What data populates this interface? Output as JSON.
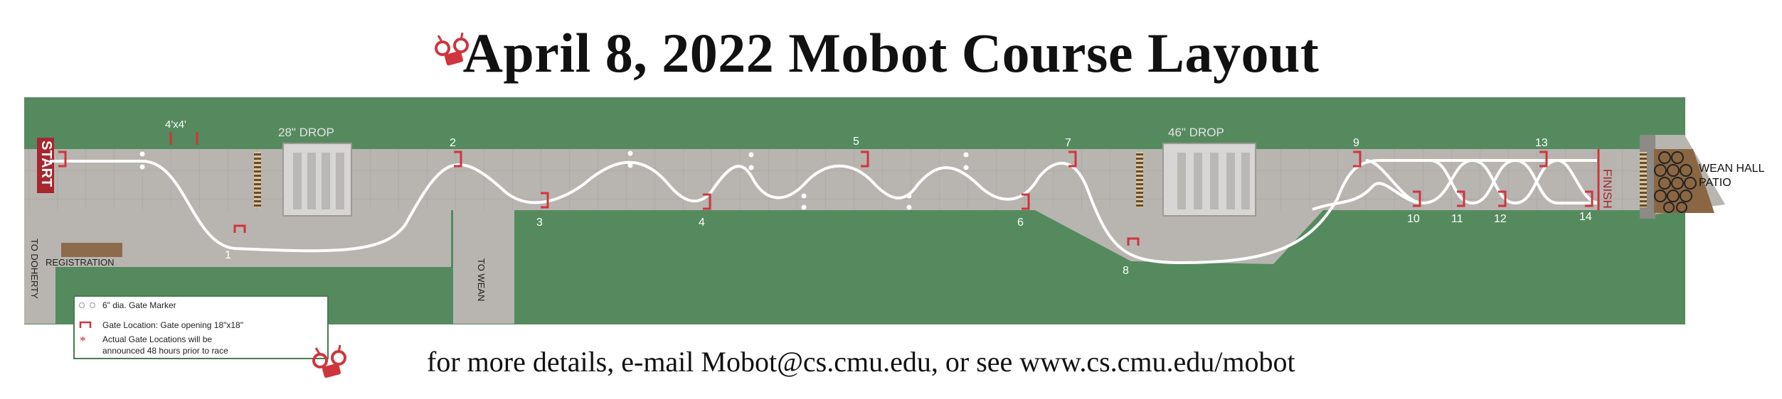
{
  "title": "April 8, 2022 Mobot Course Layout",
  "footer": "for more details, e-mail Mobot@cs.cmu.edu, or see www.cs.cmu.edu/mobot",
  "logo_icon": "mobot-robot-logo-icon",
  "course": {
    "start": "START",
    "finish": "FINISH",
    "to_doherty": "TO DOHERTY",
    "to_wean": "TO WEAN",
    "registration": "REGISTRATION",
    "drop_28": "28\" DROP",
    "drop_46": "46\" DROP",
    "size_4x4": "4'x4'",
    "patio": [
      "WEAN HALL",
      "PATIO"
    ],
    "gates": [
      "1",
      "2",
      "3",
      "4",
      "5",
      "6",
      "7",
      "8",
      "9",
      "10",
      "11",
      "12",
      "13",
      "14"
    ]
  },
  "legend": {
    "marker": "6\" dia. Gate Marker",
    "gate": "Gate Location: Gate opening 18\"x18\"",
    "note_line1": "Actual Gate Locations will be",
    "note_line2": "announced 48 hours prior to race"
  },
  "colors": {
    "grass": "#558a5e",
    "walkway": "#b8b5b1",
    "gate": "#d0343c",
    "start_banner": "#a8262e",
    "path": "#ffffff"
  }
}
